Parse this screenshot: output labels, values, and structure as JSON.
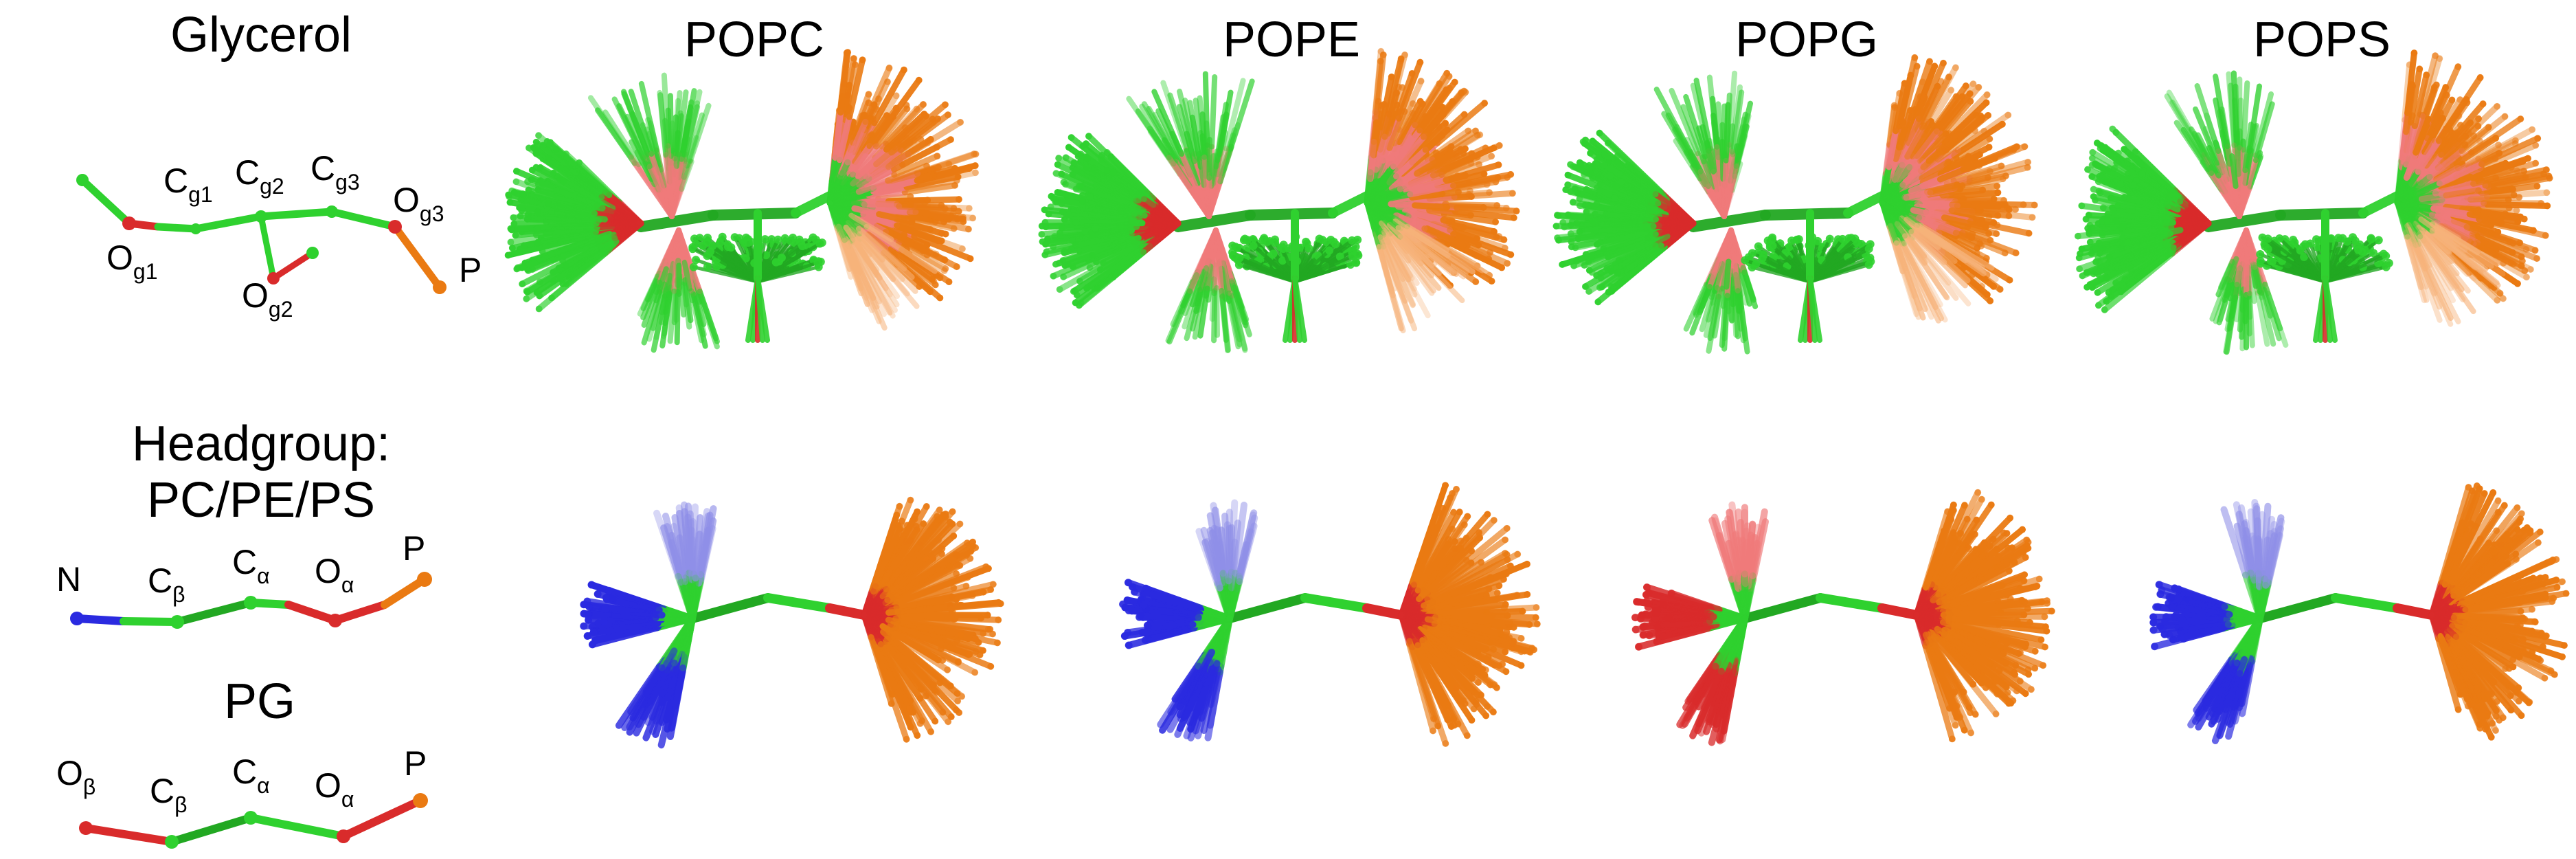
{
  "colors": {
    "carbon": "#2fd12f",
    "carbon_dark": "#22a822",
    "oxygen": "#d92b2b",
    "oxygen_light": "#f07a7a",
    "phosphorus": "#ea7a12",
    "phosphorus_light": "#f7b37a",
    "nitrogen": "#2a2ae0",
    "nitrogen_light": "#8f8fe8"
  },
  "left_panel": {
    "glycerol": {
      "title": "Glycerol",
      "labels": [
        {
          "base": "C",
          "sub": "g1"
        },
        {
          "base": "C",
          "sub": "g2"
        },
        {
          "base": "C",
          "sub": "g3"
        },
        {
          "base": "O",
          "sub": "g3"
        },
        {
          "base": "O",
          "sub": "g1"
        },
        {
          "base": "O",
          "sub": "g2"
        },
        {
          "base": "P",
          "sub": ""
        }
      ]
    },
    "headgroup": {
      "title_line1": "Headgroup:",
      "title_line2": "PC/PE/PS",
      "labels": [
        {
          "base": "N",
          "sub": ""
        },
        {
          "base": "C",
          "sub": "β"
        },
        {
          "base": "C",
          "sub": "α"
        },
        {
          "base": "O",
          "sub": "α"
        },
        {
          "base": "P",
          "sub": ""
        }
      ]
    },
    "pg": {
      "title": "PG",
      "labels": [
        {
          "base": "O",
          "sub": "β"
        },
        {
          "base": "C",
          "sub": "β"
        },
        {
          "base": "C",
          "sub": "α"
        },
        {
          "base": "O",
          "sub": "α"
        },
        {
          "base": "P",
          "sub": ""
        }
      ]
    }
  },
  "columns": [
    {
      "title": "POPC",
      "head_end": "nitrogen"
    },
    {
      "title": "POPE",
      "head_end": "nitrogen"
    },
    {
      "title": "POPG",
      "head_end": "oxygen"
    },
    {
      "title": "POPS",
      "head_end": "nitrogen"
    }
  ]
}
